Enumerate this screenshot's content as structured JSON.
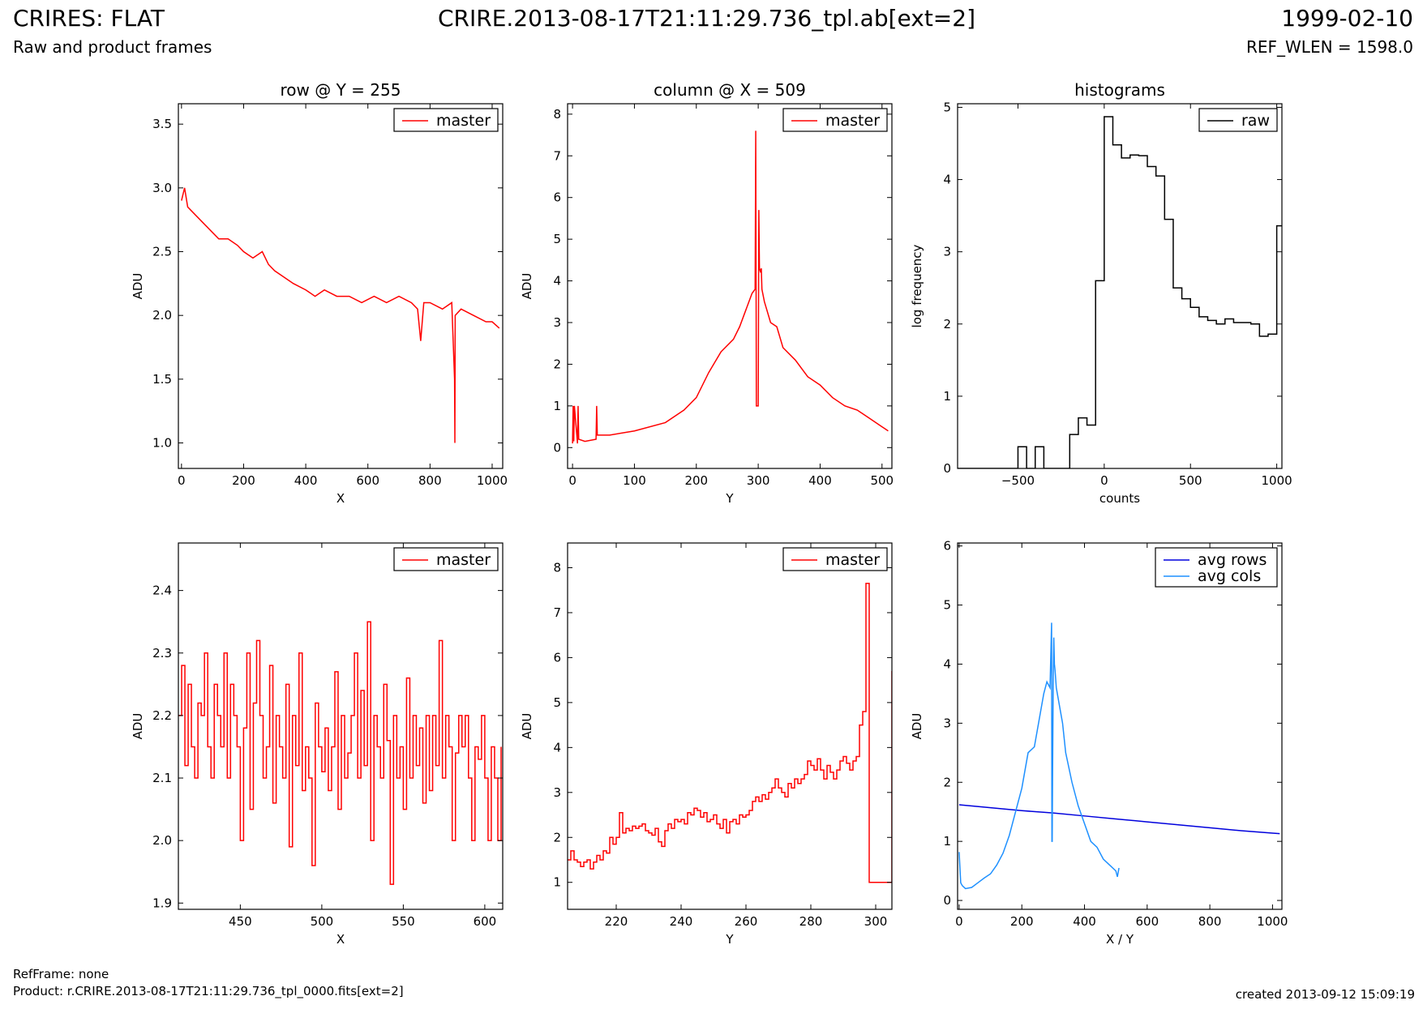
{
  "header": {
    "title": "CRIRES: FLAT",
    "subtitle": "Raw and product frames",
    "file": "CRIRE.2013-08-17T21:11:29.736_tpl.ab[ext=2]",
    "date": "1999-02-10",
    "ref_wlen": "REF_WLEN = 1598.0"
  },
  "footer": {
    "refframe": "RefFrame: none",
    "product": "Product: r.CRIRE.2013-08-17T21:11:29.736_tpl_0000.fits[ext=2]",
    "created": "created 2013-09-12 15:09:19"
  },
  "colors": {
    "master": "#ff0000",
    "raw": "#000000",
    "avg_rows": "#0000dd",
    "avg_cols": "#1e90ff",
    "axes": "#000000"
  },
  "chart_data": [
    {
      "id": "p1",
      "type": "line",
      "title": "row @ Y = 255",
      "xlabel": "X",
      "ylabel": "ADU",
      "xlim": [
        -10,
        1034
      ],
      "ylim": [
        0.8,
        3.66
      ],
      "xticks": [
        0,
        200,
        400,
        600,
        800,
        1000
      ],
      "xtick_labels": [
        "0",
        "200",
        "400",
        "600",
        "800",
        "1000"
      ],
      "yticks": [
        1.0,
        1.5,
        2.0,
        2.5,
        3.0,
        3.5
      ],
      "ytick_labels": [
        "1.0",
        "1.5",
        "2.0",
        "2.5",
        "3.0",
        "3.5"
      ],
      "legend": {
        "position": "top-right",
        "entries": [
          {
            "label": "master",
            "color": "#ff0000"
          }
        ]
      },
      "series": [
        {
          "name": "master",
          "color": "#ff0000",
          "x": [
            0,
            10,
            20,
            40,
            60,
            80,
            100,
            120,
            150,
            180,
            200,
            230,
            260,
            280,
            300,
            330,
            360,
            400,
            430,
            460,
            500,
            540,
            580,
            620,
            660,
            700,
            740,
            760,
            770,
            780,
            800,
            840,
            870,
            879,
            880,
            881,
            900,
            940,
            980,
            1000,
            1023
          ],
          "y": [
            2.9,
            3.0,
            2.85,
            2.8,
            2.75,
            2.7,
            2.65,
            2.6,
            2.6,
            2.55,
            2.5,
            2.45,
            2.5,
            2.4,
            2.35,
            2.3,
            2.25,
            2.2,
            2.15,
            2.2,
            2.15,
            2.15,
            2.1,
            2.15,
            2.1,
            2.15,
            2.1,
            2.05,
            1.8,
            2.1,
            2.1,
            2.05,
            2.1,
            1.5,
            1.0,
            2.0,
            2.05,
            2.0,
            1.95,
            1.95,
            1.9
          ]
        }
      ]
    },
    {
      "id": "p2",
      "type": "line",
      "title": "column @ X = 509",
      "xlabel": "Y",
      "ylabel": "ADU",
      "xlim": [
        -8,
        516
      ],
      "ylim": [
        -0.5,
        8.25
      ],
      "xticks": [
        0,
        100,
        200,
        300,
        400,
        500
      ],
      "xtick_labels": [
        "0",
        "100",
        "200",
        "300",
        "400",
        "500"
      ],
      "yticks": [
        0,
        1,
        2,
        3,
        4,
        5,
        6,
        7,
        8
      ],
      "ytick_labels": [
        "0",
        "1",
        "2",
        "3",
        "4",
        "5",
        "6",
        "7",
        "8"
      ],
      "legend": {
        "position": "top-right",
        "entries": [
          {
            "label": "master",
            "color": "#ff0000"
          }
        ]
      },
      "series": [
        {
          "name": "master",
          "color": "#ff0000",
          "x": [
            0,
            1,
            2,
            3,
            8,
            9,
            10,
            20,
            38,
            39,
            40,
            60,
            100,
            150,
            180,
            200,
            220,
            240,
            260,
            270,
            280,
            290,
            295,
            296,
            297,
            298,
            300,
            301,
            302,
            304,
            305,
            306,
            310,
            320,
            330,
            340,
            360,
            380,
            400,
            420,
            440,
            460,
            480,
            500,
            505,
            510
          ],
          "y": [
            0.1,
            1.0,
            0.15,
            1.0,
            0.1,
            1.0,
            0.2,
            0.15,
            0.2,
            1.0,
            0.3,
            0.3,
            0.4,
            0.6,
            0.9,
            1.2,
            1.8,
            2.3,
            2.6,
            2.9,
            3.3,
            3.7,
            3.8,
            7.6,
            1.0,
            1.0,
            1.0,
            5.7,
            4.3,
            4.2,
            4.3,
            3.8,
            3.5,
            3.0,
            2.9,
            2.4,
            2.1,
            1.7,
            1.5,
            1.2,
            1.0,
            0.9,
            0.7,
            0.5,
            0.45,
            0.4
          ]
        }
      ]
    },
    {
      "id": "p3",
      "type": "line",
      "title": "histograms",
      "xlabel": "counts",
      "ylabel": "log frequency",
      "xlim": [
        -850,
        1030
      ],
      "ylim": [
        0,
        5.05
      ],
      "xticks": [
        -500,
        0,
        500,
        1000
      ],
      "xtick_labels": [
        "−500",
        "0",
        "500",
        "1000"
      ],
      "yticks": [
        0,
        1,
        2,
        3,
        4,
        5
      ],
      "ytick_labels": [
        "0",
        "1",
        "2",
        "3",
        "4",
        "5"
      ],
      "legend": {
        "position": "top-right",
        "entries": [
          {
            "label": "raw",
            "color": "#000000"
          }
        ]
      },
      "series": [
        {
          "name": "raw",
          "color": "#000000",
          "step": true,
          "x": [
            -850,
            -500,
            -450,
            -400,
            -350,
            -300,
            -250,
            -200,
            -150,
            -100,
            -50,
            0,
            50,
            100,
            150,
            200,
            250,
            300,
            350,
            400,
            450,
            500,
            550,
            600,
            650,
            700,
            750,
            800,
            850,
            900,
            950,
            1000,
            1030
          ],
          "y": [
            0,
            0.3,
            0,
            0.3,
            0,
            0,
            0,
            0.47,
            0.7,
            0.6,
            2.6,
            4.87,
            4.48,
            4.3,
            4.34,
            4.33,
            4.18,
            4.05,
            3.45,
            2.5,
            2.35,
            2.23,
            2.1,
            2.05,
            2.0,
            2.07,
            2.02,
            2.02,
            2.0,
            1.83,
            1.86,
            3.36,
            3.36
          ]
        }
      ]
    },
    {
      "id": "p4",
      "type": "line",
      "title": "",
      "xlabel": "X",
      "ylabel": "ADU",
      "xlim": [
        412,
        611
      ],
      "ylim": [
        1.89,
        2.476
      ],
      "xticks": [
        450,
        500,
        550,
        600
      ],
      "xtick_labels": [
        "450",
        "500",
        "550",
        "600"
      ],
      "yticks": [
        1.9,
        2.0,
        2.1,
        2.2,
        2.3,
        2.4
      ],
      "ytick_labels": [
        "1.9",
        "2.0",
        "2.1",
        "2.2",
        "2.3",
        "2.4"
      ],
      "legend": {
        "position": "top-right",
        "entries": [
          {
            "label": "master",
            "color": "#ff0000"
          }
        ]
      },
      "series": [
        {
          "name": "master",
          "color": "#ff0000",
          "step": true,
          "x": [
            412,
            414,
            416,
            418,
            420,
            422,
            424,
            426,
            428,
            430,
            432,
            434,
            436,
            438,
            440,
            442,
            444,
            446,
            448,
            450,
            452,
            454,
            456,
            458,
            460,
            462,
            464,
            466,
            468,
            470,
            472,
            474,
            476,
            478,
            480,
            482,
            484,
            486,
            488,
            490,
            492,
            494,
            496,
            498,
            500,
            502,
            504,
            506,
            508,
            510,
            512,
            514,
            516,
            518,
            520,
            522,
            524,
            526,
            528,
            530,
            532,
            534,
            536,
            538,
            540,
            542,
            544,
            546,
            548,
            550,
            552,
            554,
            556,
            558,
            560,
            562,
            564,
            566,
            568,
            570,
            572,
            574,
            576,
            578,
            580,
            582,
            584,
            586,
            588,
            590,
            592,
            594,
            596,
            598,
            600,
            602,
            604,
            606,
            608,
            610
          ],
          "y": [
            2.2,
            2.28,
            2.12,
            2.25,
            2.15,
            2.1,
            2.22,
            2.2,
            2.3,
            2.15,
            2.1,
            2.25,
            2.2,
            2.15,
            2.3,
            2.1,
            2.25,
            2.2,
            2.15,
            2.0,
            2.18,
            2.3,
            2.05,
            2.22,
            2.32,
            2.2,
            2.1,
            2.15,
            2.28,
            2.06,
            2.2,
            2.15,
            2.1,
            2.25,
            1.99,
            2.2,
            2.12,
            2.3,
            2.08,
            2.15,
            2.1,
            1.96,
            2.22,
            2.15,
            2.11,
            2.18,
            2.08,
            2.15,
            2.27,
            2.05,
            2.2,
            2.1,
            2.14,
            2.2,
            2.3,
            2.1,
            2.24,
            2.12,
            2.35,
            2.0,
            2.2,
            2.15,
            2.1,
            2.25,
            2.16,
            1.93,
            2.2,
            2.1,
            2.15,
            2.05,
            2.26,
            2.1,
            2.2,
            2.12,
            2.18,
            2.06,
            2.2,
            2.08,
            2.2,
            2.12,
            2.32,
            2.1,
            2.2,
            2.15,
            2.0,
            2.14,
            2.2,
            2.15,
            2.2,
            2.1,
            2.0,
            2.15,
            2.13,
            2.2,
            2.1,
            2.0,
            2.15,
            2.1,
            2.0,
            2.15
          ]
        }
      ]
    },
    {
      "id": "p5",
      "type": "line",
      "title": "",
      "xlabel": "Y",
      "ylabel": "ADU",
      "xlim": [
        205,
        305
      ],
      "ylim": [
        0.4,
        8.55
      ],
      "xticks": [
        220,
        240,
        260,
        280,
        300
      ],
      "xtick_labels": [
        "220",
        "240",
        "260",
        "280",
        "300"
      ],
      "yticks": [
        1,
        2,
        3,
        4,
        5,
        6,
        7,
        8
      ],
      "ytick_labels": [
        "1",
        "2",
        "3",
        "4",
        "5",
        "6",
        "7",
        "8"
      ],
      "legend": {
        "position": "top-right",
        "entries": [
          {
            "label": "master",
            "color": "#ff0000"
          }
        ]
      },
      "series": [
        {
          "name": "master",
          "color": "#ff0000",
          "step": true,
          "x": [
            205,
            206,
            207,
            208,
            209,
            210,
            211,
            212,
            213,
            214,
            215,
            216,
            217,
            218,
            219,
            220,
            221,
            222,
            223,
            224,
            225,
            226,
            227,
            228,
            229,
            230,
            231,
            232,
            233,
            234,
            235,
            236,
            237,
            238,
            239,
            240,
            241,
            242,
            243,
            244,
            245,
            246,
            247,
            248,
            249,
            250,
            251,
            252,
            253,
            254,
            255,
            256,
            257,
            258,
            259,
            260,
            261,
            262,
            263,
            264,
            265,
            266,
            267,
            268,
            269,
            270,
            271,
            272,
            273,
            274,
            275,
            276,
            277,
            278,
            279,
            280,
            281,
            282,
            283,
            284,
            285,
            286,
            287,
            288,
            289,
            290,
            291,
            292,
            293,
            294,
            295,
            296,
            297,
            298,
            299,
            300,
            301,
            302,
            303,
            304,
            305
          ],
          "y": [
            1.5,
            1.7,
            1.5,
            1.45,
            1.35,
            1.45,
            1.5,
            1.3,
            1.45,
            1.6,
            1.5,
            1.7,
            1.65,
            2.0,
            1.85,
            2.0,
            2.55,
            2.1,
            2.2,
            2.15,
            2.25,
            2.2,
            2.25,
            2.3,
            2.15,
            2.1,
            2.05,
            2.2,
            1.9,
            1.8,
            2.15,
            2.3,
            2.2,
            2.4,
            2.35,
            2.4,
            2.3,
            2.55,
            2.5,
            2.65,
            2.6,
            2.45,
            2.55,
            2.35,
            2.4,
            2.5,
            2.3,
            2.2,
            2.4,
            2.1,
            2.35,
            2.4,
            2.3,
            2.5,
            2.45,
            2.5,
            2.6,
            2.8,
            2.9,
            2.8,
            2.95,
            2.85,
            3.0,
            3.1,
            3.3,
            3.1,
            3.0,
            2.9,
            3.2,
            3.1,
            3.3,
            3.2,
            3.3,
            3.4,
            3.7,
            3.6,
            3.5,
            3.75,
            3.5,
            3.3,
            3.6,
            3.45,
            3.3,
            3.5,
            3.7,
            3.8,
            3.65,
            3.5,
            3.7,
            3.8,
            4.5,
            4.8,
            7.65,
            1.0,
            1.0,
            1.0,
            1.0,
            1.0,
            1.0,
            1.0,
            5.7
          ]
        }
      ]
    },
    {
      "id": "p6",
      "type": "line",
      "title": "",
      "xlabel": "X / Y",
      "ylabel": "ADU",
      "xlim": [
        -5,
        1030
      ],
      "ylim": [
        -0.15,
        6.05
      ],
      "xticks": [
        0,
        200,
        400,
        600,
        800,
        1000
      ],
      "xtick_labels": [
        "0",
        "200",
        "400",
        "600",
        "800",
        "1000"
      ],
      "yticks": [
        0,
        1,
        2,
        3,
        4,
        5,
        6
      ],
      "ytick_labels": [
        "0",
        "1",
        "2",
        "3",
        "4",
        "5",
        "6"
      ],
      "legend": {
        "position": "top-right",
        "entries": [
          {
            "label": "avg rows",
            "color": "#0000dd"
          },
          {
            "label": "avg cols",
            "color": "#1e90ff"
          }
        ]
      },
      "series": [
        {
          "name": "avg rows",
          "color": "#0000dd",
          "x": [
            0,
            100,
            200,
            300,
            400,
            500,
            600,
            700,
            800,
            900,
            1000,
            1023
          ],
          "y": [
            1.62,
            1.57,
            1.52,
            1.48,
            1.43,
            1.38,
            1.33,
            1.28,
            1.23,
            1.18,
            1.14,
            1.13
          ]
        },
        {
          "name": "avg cols",
          "color": "#1e90ff",
          "x": [
            0,
            2,
            5,
            10,
            20,
            40,
            60,
            80,
            100,
            120,
            140,
            160,
            180,
            200,
            220,
            240,
            260,
            270,
            280,
            290,
            295,
            296,
            297,
            298,
            300,
            302,
            304,
            306,
            310,
            320,
            330,
            340,
            360,
            380,
            400,
            420,
            440,
            460,
            480,
            500,
            505,
            510
          ],
          "y": [
            0.82,
            0.6,
            0.3,
            0.25,
            0.2,
            0.22,
            0.3,
            0.38,
            0.45,
            0.6,
            0.8,
            1.1,
            1.5,
            1.9,
            2.5,
            2.6,
            3.2,
            3.5,
            3.7,
            3.6,
            4.7,
            1.0,
            1.0,
            2.0,
            3.6,
            4.45,
            4.0,
            3.9,
            3.6,
            3.3,
            3.0,
            2.5,
            2.0,
            1.6,
            1.3,
            1.0,
            0.9,
            0.7,
            0.6,
            0.5,
            0.4,
            0.55
          ]
        }
      ]
    }
  ]
}
